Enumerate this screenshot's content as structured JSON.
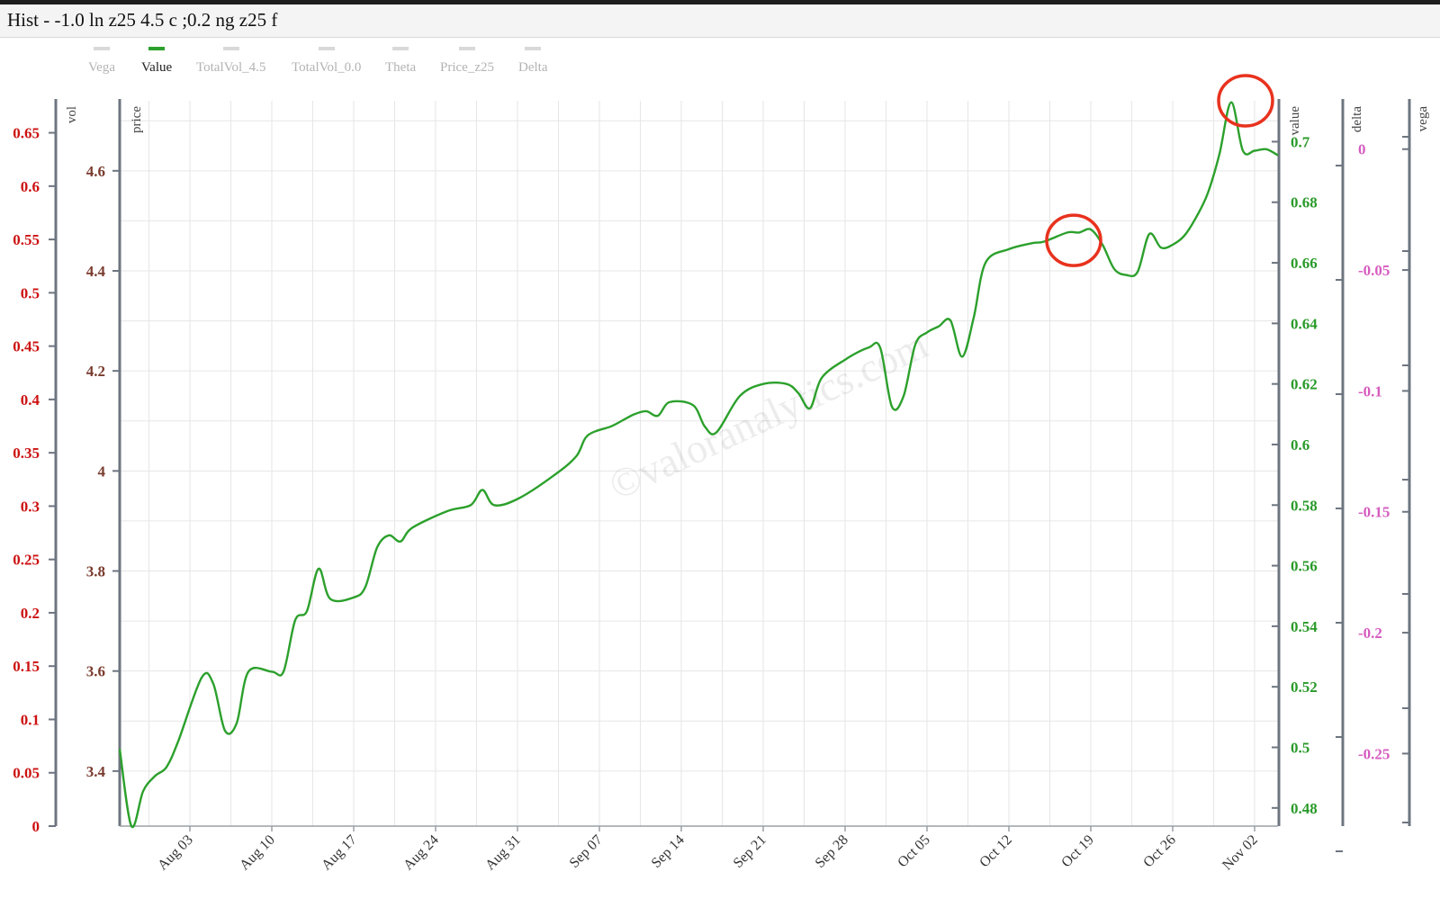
{
  "window": {
    "title": "Hist - -1.0 ln z25 4.5 c ;0.2 ng z25 f"
  },
  "legend": [
    {
      "label": "Vega",
      "active": false
    },
    {
      "label": "Value",
      "active": true
    },
    {
      "label": "TotalVol_4.5",
      "active": false
    },
    {
      "label": "TotalVol_0.0",
      "active": false
    },
    {
      "label": "Theta",
      "active": false
    },
    {
      "label": "Price_z25",
      "active": false
    },
    {
      "label": "Delta",
      "active": false
    }
  ],
  "watermark": "©valoranalytics.com",
  "colors": {
    "value_line": "#2ca02c",
    "vol_axis": "#cc1111",
    "price_axis": "#7a3b2e",
    "value_axis": "#2a9a2a",
    "vega_axis": "#d65cc0",
    "annotation": "#e8321e",
    "grid": "#e6e6e6",
    "axis_line": "#6d7580"
  },
  "chart_data": {
    "type": "line",
    "title": "",
    "x_axis": {
      "type": "date",
      "range": [
        "2025-07-28",
        "2025-11-04"
      ],
      "ticks": [
        "Aug 03",
        "Aug 10",
        "Aug 17",
        "Aug 24",
        "Aug 31",
        "Sep 07",
        "Sep 14",
        "Sep 21",
        "Sep 28",
        "Oct 05",
        "Oct 12",
        "Oct 19",
        "Oct 26",
        "Nov 02"
      ]
    },
    "axes": {
      "vol": {
        "title": "vol",
        "side": "left",
        "range": [
          0,
          0.68
        ],
        "ticks": [
          "0",
          "0.05",
          "0.1",
          "0.15",
          "0.2",
          "0.25",
          "0.3",
          "0.35",
          "0.4",
          "0.45",
          "0.5",
          "0.55",
          "0.6",
          "0.65"
        ]
      },
      "price": {
        "title": "price",
        "side": "left",
        "range": [
          3.29,
          4.74
        ],
        "ticks": [
          "3.4",
          "3.6",
          "3.8",
          "4",
          "4.2",
          "4.4",
          "4.6"
        ]
      },
      "value": {
        "title": "value",
        "side": "right",
        "range": [
          0.474,
          0.7135
        ],
        "ticks": [
          "0.48",
          "0.5",
          "0.52",
          "0.54",
          "0.56",
          "0.58",
          "0.6",
          "0.62",
          "0.64",
          "0.66",
          "0.68",
          "0.7"
        ]
      },
      "delta": {
        "title": "delta",
        "side": "right",
        "ticks": []
      },
      "vega": {
        "title": "vega",
        "side": "right",
        "range": [
          -0.28,
          0.02
        ],
        "ticks": [
          "0",
          "-0.05",
          "-0.1",
          "-0.15",
          "-0.2",
          "-0.25"
        ]
      }
    },
    "series": [
      {
        "name": "Value",
        "axis": "value",
        "points": [
          [
            "2025-07-28",
            0.4995
          ],
          [
            "2025-07-29",
            0.474
          ],
          [
            "2025-07-30",
            0.4855
          ],
          [
            "2025-07-31",
            0.4905
          ],
          [
            "2025-08-01",
            0.4935
          ],
          [
            "2025-08-02",
            0.502
          ],
          [
            "2025-08-04",
            0.523
          ],
          [
            "2025-08-05",
            0.521
          ],
          [
            "2025-08-06",
            0.5055
          ],
          [
            "2025-08-07",
            0.508
          ],
          [
            "2025-08-08",
            0.525
          ],
          [
            "2025-08-10",
            0.525
          ],
          [
            "2025-08-11",
            0.525
          ],
          [
            "2025-08-12",
            0.542
          ],
          [
            "2025-08-13",
            0.545
          ],
          [
            "2025-08-14",
            0.559
          ],
          [
            "2025-08-15",
            0.549
          ],
          [
            "2025-08-17",
            0.5495
          ],
          [
            "2025-08-18",
            0.553
          ],
          [
            "2025-08-19",
            0.566
          ],
          [
            "2025-08-20",
            0.57
          ],
          [
            "2025-08-21",
            0.568
          ],
          [
            "2025-08-22",
            0.5725
          ],
          [
            "2025-08-25",
            0.578
          ],
          [
            "2025-08-27",
            0.58
          ],
          [
            "2025-08-28",
            0.585
          ],
          [
            "2025-08-29",
            0.58
          ],
          [
            "2025-08-31",
            0.582
          ],
          [
            "2025-09-03",
            0.5895
          ],
          [
            "2025-09-05",
            0.596
          ],
          [
            "2025-09-06",
            0.603
          ],
          [
            "2025-09-08",
            0.606
          ],
          [
            "2025-09-09",
            0.608
          ],
          [
            "2025-09-10",
            0.61
          ],
          [
            "2025-09-11",
            0.611
          ],
          [
            "2025-09-12",
            0.6095
          ],
          [
            "2025-09-13",
            0.614
          ],
          [
            "2025-09-15",
            0.613
          ],
          [
            "2025-09-16",
            0.606
          ],
          [
            "2025-09-17",
            0.604
          ],
          [
            "2025-09-19",
            0.616
          ],
          [
            "2025-09-21",
            0.62
          ],
          [
            "2025-09-23",
            0.62
          ],
          [
            "2025-09-24",
            0.617
          ],
          [
            "2025-09-25",
            0.612
          ],
          [
            "2025-09-26",
            0.622
          ],
          [
            "2025-09-28",
            0.628
          ],
          [
            "2025-09-30",
            0.632
          ],
          [
            "2025-10-01",
            0.632
          ],
          [
            "2025-10-02",
            0.6125
          ],
          [
            "2025-10-03",
            0.616
          ],
          [
            "2025-10-04",
            0.633
          ],
          [
            "2025-10-05",
            0.637
          ],
          [
            "2025-10-06",
            0.639
          ],
          [
            "2025-10-07",
            0.641
          ],
          [
            "2025-10-08",
            0.629
          ],
          [
            "2025-10-09",
            0.642
          ],
          [
            "2025-10-10",
            0.66
          ],
          [
            "2025-10-12",
            0.6645
          ],
          [
            "2025-10-14",
            0.6665
          ],
          [
            "2025-10-15",
            0.667
          ],
          [
            "2025-10-17",
            0.67
          ],
          [
            "2025-10-18",
            0.67
          ],
          [
            "2025-10-19",
            0.671
          ],
          [
            "2025-10-20",
            0.666
          ],
          [
            "2025-10-21",
            0.658
          ],
          [
            "2025-10-22",
            0.656
          ],
          [
            "2025-10-23",
            0.657
          ],
          [
            "2025-10-24",
            0.6695
          ],
          [
            "2025-10-25",
            0.665
          ],
          [
            "2025-10-26",
            0.666
          ],
          [
            "2025-10-27",
            0.669
          ],
          [
            "2025-10-28",
            0.675
          ],
          [
            "2025-10-29",
            0.683
          ],
          [
            "2025-10-30",
            0.696
          ],
          [
            "2025-10-31",
            0.713
          ],
          [
            "2025-11-01",
            0.697
          ],
          [
            "2025-11-02",
            0.697
          ],
          [
            "2025-11-03",
            0.6975
          ],
          [
            "2025-11-04",
            0.6955
          ]
        ]
      }
    ],
    "annotations": [
      {
        "shape": "circle",
        "date": "2025-10-18",
        "value": 0.668
      },
      {
        "shape": "circle",
        "date": "2025-10-31",
        "value": 0.7135
      }
    ],
    "grid": true,
    "legend_position": "top-left"
  }
}
